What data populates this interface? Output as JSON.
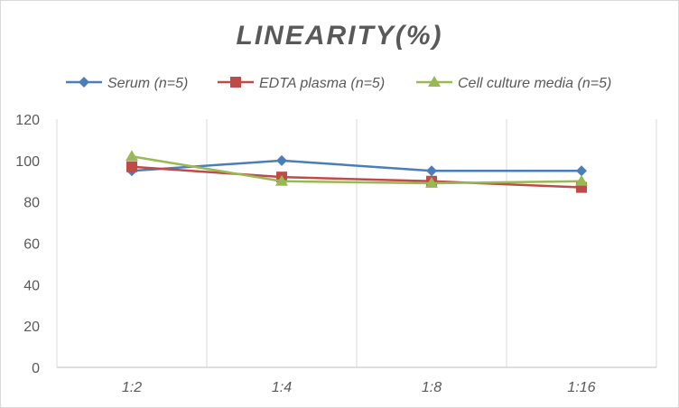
{
  "chart_data": {
    "type": "line",
    "title": "LINEARITY(%)",
    "categories": [
      "1:2",
      "1:4",
      "1:8",
      "1:16"
    ],
    "ylim": [
      0,
      120
    ],
    "yticks": [
      0,
      20,
      40,
      60,
      80,
      100,
      120
    ],
    "grid": "vertical gridlines between categories",
    "legend_position": "top",
    "series": [
      {
        "name": "Serum (n=5)",
        "color": "#4a7ebb",
        "marker": "diamond",
        "values": [
          95,
          100,
          95,
          95
        ]
      },
      {
        "name": "EDTA plasma (n=5)",
        "color": "#be4b48",
        "marker": "square",
        "values": [
          97,
          92,
          90,
          87
        ]
      },
      {
        "name": "Cell culture media (n=5)",
        "color": "#98b954",
        "marker": "triangle",
        "values": [
          102,
          90,
          89,
          90
        ]
      }
    ]
  }
}
